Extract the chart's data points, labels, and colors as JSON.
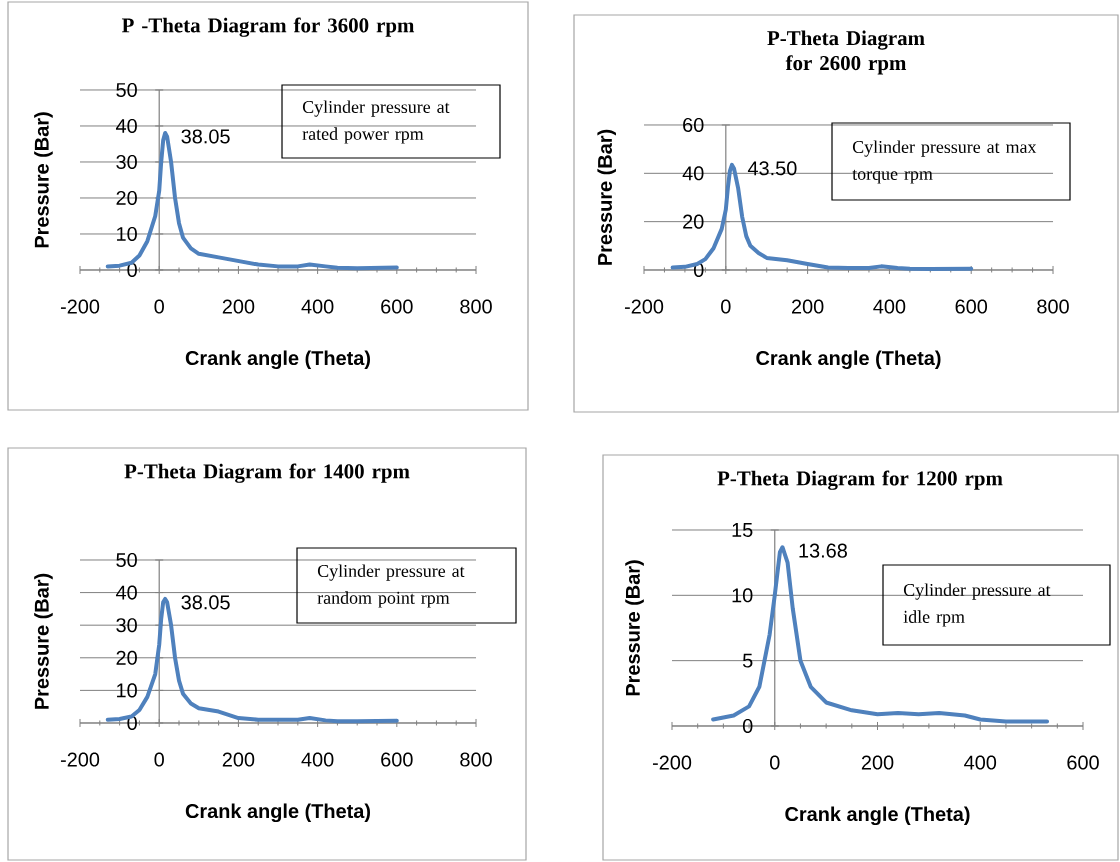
{
  "chart_data": [
    {
      "type": "line",
      "title": "P -Theta Diagram for 3600 rpm",
      "xlabel": "Crank angle (Theta)",
      "ylabel": "Pressure (Bar)",
      "color": "#4f81bd",
      "grid": "y",
      "x": [
        -130,
        -100,
        -70,
        -50,
        -30,
        -10,
        0,
        5,
        10,
        15,
        20,
        30,
        40,
        50,
        60,
        80,
        100,
        150,
        200,
        250,
        300,
        350,
        380,
        420,
        450,
        500,
        600
      ],
      "values": [
        1,
        1.2,
        2,
        4,
        8,
        15,
        22,
        30,
        36,
        38.05,
        37,
        30,
        20,
        13,
        9,
        6,
        4.5,
        3.5,
        2.5,
        1.5,
        1,
        1,
        1.5,
        1,
        0.6,
        0.5,
        0.7
      ],
      "xlim": [
        -200,
        800
      ],
      "xticks": [
        -200,
        0,
        200,
        400,
        600,
        800
      ],
      "ylim": [
        0,
        50
      ],
      "yticks": [
        0,
        10,
        20,
        30,
        40,
        50
      ],
      "annotations": [
        "38.05",
        "Cylinder pressure at rated power rpm"
      ]
    },
    {
      "type": "line",
      "title": "P-Theta Diagram for 2600 rpm",
      "xlabel": "Crank angle (Theta)",
      "ylabel": "Pressure (Bar)",
      "color": "#4f81bd",
      "grid": "y",
      "x": [
        -130,
        -100,
        -70,
        -50,
        -30,
        -10,
        0,
        5,
        10,
        15,
        20,
        30,
        40,
        50,
        60,
        80,
        100,
        150,
        200,
        250,
        300,
        350,
        380,
        420,
        450,
        500,
        600
      ],
      "values": [
        1,
        1.3,
        2.5,
        4.5,
        9,
        17,
        25,
        34,
        41,
        43.5,
        42,
        34,
        22,
        14,
        10,
        7,
        5,
        4,
        2.5,
        1,
        0.8,
        0.8,
        1.5,
        0.8,
        0.5,
        0.4,
        0.5
      ],
      "xlim": [
        -200,
        800
      ],
      "xticks": [
        -200,
        0,
        200,
        400,
        600,
        800
      ],
      "ylim": [
        0,
        60
      ],
      "yticks": [
        0,
        20,
        40,
        60
      ],
      "annotations": [
        "43.50",
        "Cylinder pressure at max torque rpm"
      ]
    },
    {
      "type": "line",
      "title": "P-Theta Diagram for 1400 rpm",
      "xlabel": "Crank angle (Theta)",
      "ylabel": "Pressure (Bar)",
      "color": "#4f81bd",
      "grid": "y",
      "x": [
        -130,
        -100,
        -70,
        -50,
        -30,
        -10,
        0,
        5,
        10,
        15,
        20,
        30,
        40,
        50,
        60,
        80,
        100,
        150,
        200,
        250,
        300,
        350,
        380,
        420,
        450,
        500,
        600
      ],
      "values": [
        1,
        1.2,
        2,
        4,
        8,
        15,
        24,
        32,
        37,
        38.05,
        37,
        30,
        20,
        13,
        9,
        6,
        4.5,
        3.5,
        1.5,
        1,
        1,
        1,
        1.5,
        0.8,
        0.5,
        0.5,
        0.7
      ],
      "xlim": [
        -200,
        800
      ],
      "xticks": [
        -200,
        0,
        200,
        400,
        600,
        800
      ],
      "ylim": [
        0,
        50
      ],
      "yticks": [
        0,
        10,
        20,
        30,
        40,
        50
      ],
      "annotations": [
        "38.05",
        "Cylinder pressure at random point rpm"
      ]
    },
    {
      "type": "line",
      "title": "P-Theta Diagram for 1200 rpm",
      "xlabel": "Crank angle (Theta)",
      "ylabel": "Pressure (Bar)",
      "color": "#4f81bd",
      "grid": "y",
      "x": [
        -120,
        -80,
        -50,
        -30,
        -10,
        0,
        10,
        15,
        25,
        35,
        50,
        70,
        100,
        150,
        200,
        240,
        280,
        320,
        370,
        400,
        450,
        530
      ],
      "values": [
        0.5,
        0.8,
        1.5,
        3,
        7,
        10,
        13.3,
        13.68,
        12.5,
        9,
        5,
        3,
        1.8,
        1.2,
        0.9,
        1,
        0.9,
        1,
        0.8,
        0.5,
        0.35,
        0.35
      ],
      "xlim": [
        -200,
        600
      ],
      "xticks": [
        -200,
        0,
        200,
        400,
        600
      ],
      "ylim": [
        0,
        15
      ],
      "yticks": [
        0,
        5,
        10,
        15
      ],
      "annotations": [
        "13.68",
        "Cylinder pressure at idle rpm"
      ]
    }
  ]
}
